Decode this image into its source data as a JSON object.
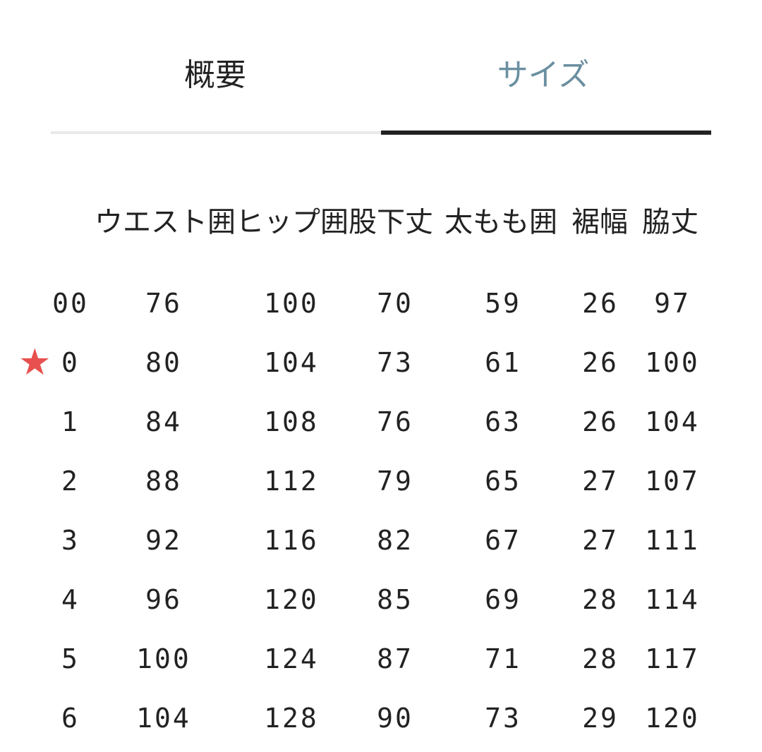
{
  "tabs": [
    {
      "label": "概要",
      "active": false
    },
    {
      "label": "サイズ",
      "active": true
    }
  ],
  "colors": {
    "active_tab": "#6a8fa0",
    "star": "#e8504f",
    "indicator": "#222222"
  },
  "table": {
    "headers": [
      "",
      "ウエスト囲",
      "ヒップ囲",
      "股下丈",
      "太もも囲",
      "裾幅",
      "脇丈"
    ],
    "rows": [
      {
        "cells": [
          "00",
          "76",
          "100",
          "70",
          "59",
          "26",
          "97"
        ],
        "marked": false
      },
      {
        "cells": [
          "0",
          "80",
          "104",
          "73",
          "61",
          "26",
          "100"
        ],
        "marked": true,
        "marker_icon": "star-icon"
      },
      {
        "cells": [
          "1",
          "84",
          "108",
          "76",
          "63",
          "26",
          "104"
        ],
        "marked": false
      },
      {
        "cells": [
          "2",
          "88",
          "112",
          "79",
          "65",
          "27",
          "107"
        ],
        "marked": false
      },
      {
        "cells": [
          "3",
          "92",
          "116",
          "82",
          "67",
          "27",
          "111"
        ],
        "marked": false
      },
      {
        "cells": [
          "4",
          "96",
          "120",
          "85",
          "69",
          "28",
          "114"
        ],
        "marked": false
      },
      {
        "cells": [
          "5",
          "100",
          "124",
          "87",
          "71",
          "28",
          "117"
        ],
        "marked": false
      },
      {
        "cells": [
          "6",
          "104",
          "128",
          "90",
          "73",
          "29",
          "120"
        ],
        "marked": false
      }
    ]
  }
}
